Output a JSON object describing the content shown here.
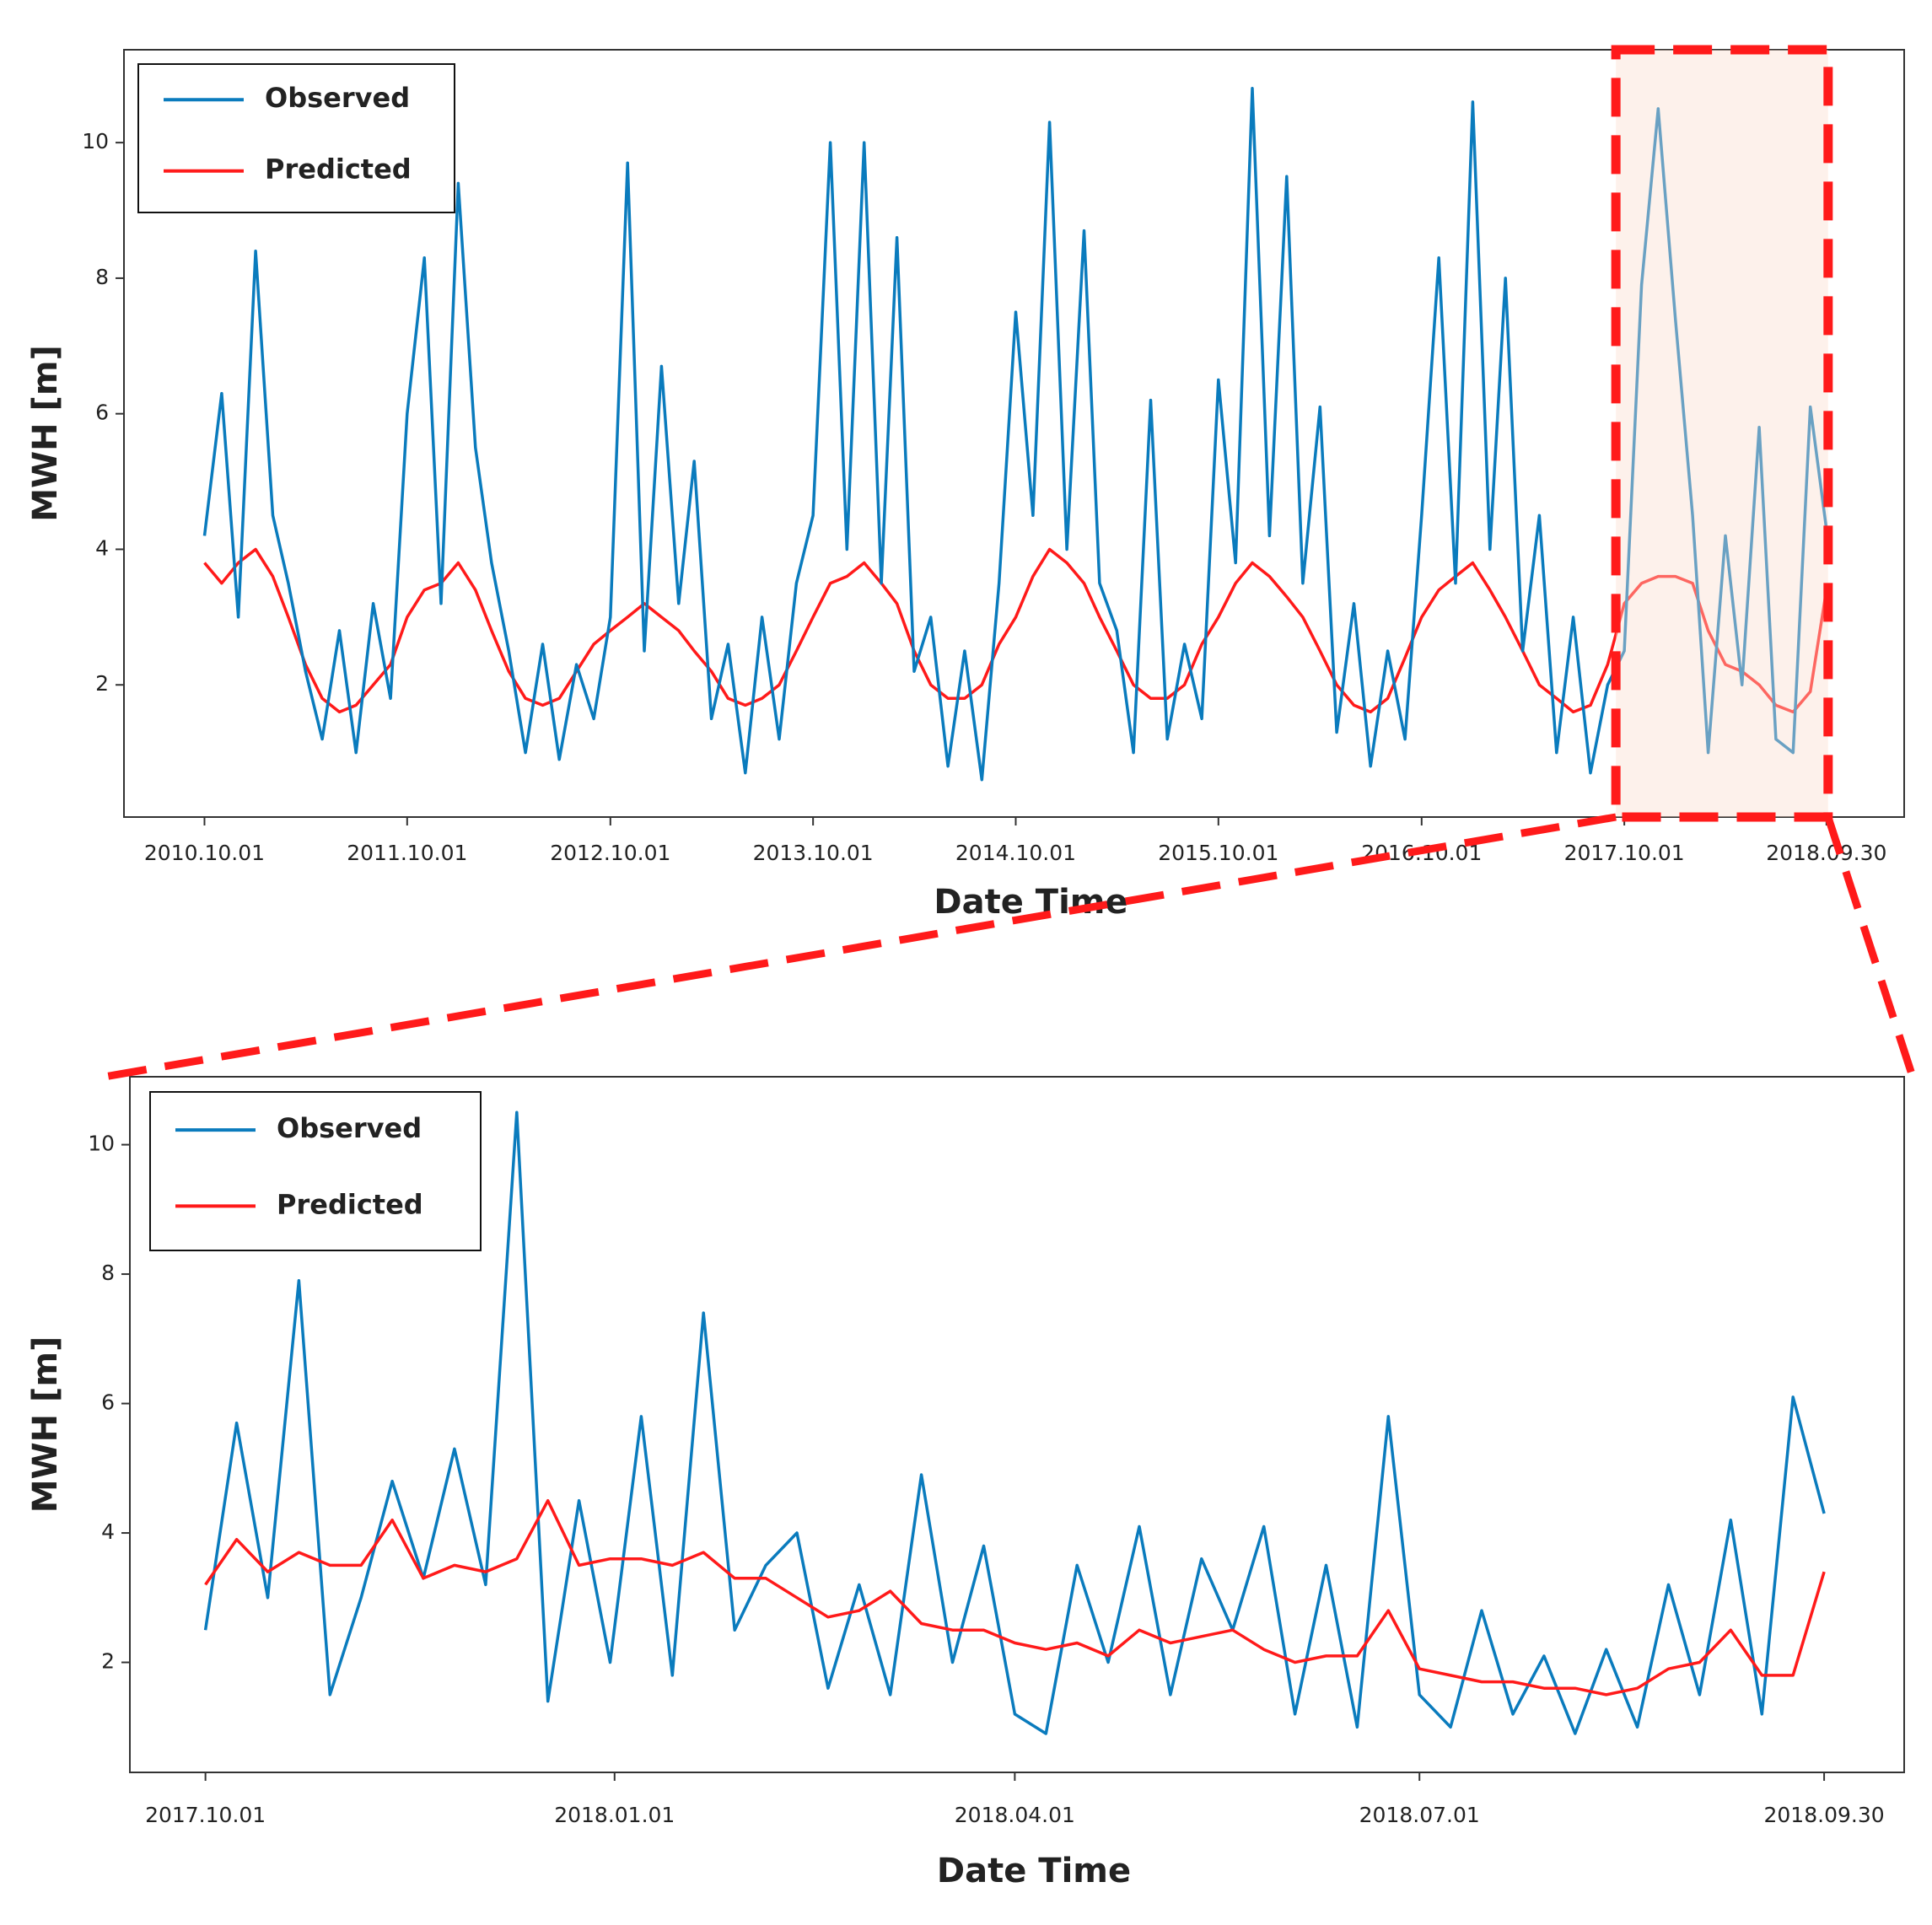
{
  "chart_data": [
    {
      "type": "line",
      "xlabel": "Date Time",
      "ylabel": "MWH [m]",
      "legend": "upper left",
      "xlim": [
        "2010.05.09",
        "2019.02.17"
      ],
      "ylim": [
        0.05,
        11.37
      ],
      "xticks": [
        "2010.10.01",
        "2011.10.01",
        "2012.10.01",
        "2013.10.01",
        "2014.10.01",
        "2015.10.01",
        "2016.10.01",
        "2017.10.01",
        "2018.09.30"
      ],
      "yticks": [
        2,
        4,
        6,
        8,
        10
      ],
      "x": [
        "2010.10.01",
        "2010.11.01",
        "2010.12.01",
        "2011.01.01",
        "2011.02.01",
        "2011.03.01",
        "2011.04.01",
        "2011.05.01",
        "2011.06.01",
        "2011.07.01",
        "2011.08.01",
        "2011.09.01",
        "2011.10.01",
        "2011.11.01",
        "2011.12.01",
        "2012.01.01",
        "2012.02.01",
        "2012.03.01",
        "2012.04.01",
        "2012.05.01",
        "2012.06.01",
        "2012.07.01",
        "2012.08.01",
        "2012.09.01",
        "2012.10.01",
        "2012.11.01",
        "2012.12.01",
        "2013.01.01",
        "2013.02.01",
        "2013.03.01",
        "2013.04.01",
        "2013.05.01",
        "2013.06.01",
        "2013.07.01",
        "2013.08.01",
        "2013.09.01",
        "2013.10.01",
        "2013.11.01",
        "2013.12.01",
        "2014.01.01",
        "2014.02.01",
        "2014.03.01",
        "2014.04.01",
        "2014.05.01",
        "2014.06.01",
        "2014.07.01",
        "2014.08.01",
        "2014.09.01",
        "2014.10.01",
        "2014.11.01",
        "2014.12.01",
        "2015.01.01",
        "2015.02.01",
        "2015.03.01",
        "2015.04.01",
        "2015.05.01",
        "2015.06.01",
        "2015.07.01",
        "2015.08.01",
        "2015.09.01",
        "2015.10.01",
        "2015.11.01",
        "2015.12.01",
        "2016.01.01",
        "2016.02.01",
        "2016.03.01",
        "2016.04.01",
        "2016.05.01",
        "2016.06.01",
        "2016.07.01",
        "2016.08.01",
        "2016.09.01",
        "2016.10.01",
        "2016.11.01",
        "2016.12.01",
        "2017.01.01",
        "2017.02.01",
        "2017.03.01",
        "2017.04.01",
        "2017.05.01",
        "2017.06.01",
        "2017.07.01",
        "2017.08.01",
        "2017.09.01",
        "2017.10.01",
        "2017.11.01",
        "2017.12.01",
        "2018.01.01",
        "2018.02.01",
        "2018.03.01",
        "2018.04.01",
        "2018.05.01",
        "2018.06.01",
        "2018.07.01",
        "2018.08.01",
        "2018.09.01",
        "2018.09.30"
      ],
      "series": [
        {
          "name": "Observed",
          "color": "#0a7bbd",
          "values": [
            4.2,
            6.3,
            3.0,
            8.4,
            4.5,
            3.5,
            2.2,
            1.2,
            2.8,
            1.0,
            3.2,
            1.8,
            6.0,
            8.3,
            3.2,
            9.4,
            5.5,
            3.8,
            2.5,
            1.0,
            2.6,
            0.9,
            2.3,
            1.5,
            3.0,
            9.7,
            2.5,
            6.7,
            3.2,
            5.3,
            1.5,
            2.6,
            0.7,
            3.0,
            1.2,
            3.5,
            4.5,
            10.0,
            4.0,
            10.0,
            3.5,
            8.6,
            2.2,
            3.0,
            0.8,
            2.5,
            0.6,
            3.5,
            7.5,
            4.5,
            10.3,
            4.0,
            8.7,
            3.5,
            2.8,
            1.0,
            6.2,
            1.2,
            2.6,
            1.5,
            6.5,
            3.8,
            10.8,
            4.2,
            9.5,
            3.5,
            6.1,
            1.3,
            3.2,
            0.8,
            2.5,
            1.2,
            4.5,
            8.3,
            3.5,
            10.6,
            4.0,
            8.0,
            2.5,
            4.5,
            1.0,
            3.0,
            0.7,
            2.0,
            2.5,
            7.9,
            10.5,
            7.4,
            4.5,
            1.0,
            4.2,
            2.0,
            5.8,
            1.2,
            1.0,
            6.1,
            4.3
          ]
        },
        {
          "name": "Predicted",
          "color": "#ff1a1a",
          "values": [
            3.8,
            3.5,
            3.8,
            4.0,
            3.6,
            3.0,
            2.3,
            1.8,
            1.6,
            1.7,
            2.0,
            2.3,
            3.0,
            3.4,
            3.5,
            3.8,
            3.4,
            2.8,
            2.2,
            1.8,
            1.7,
            1.8,
            2.2,
            2.6,
            2.8,
            3.0,
            3.2,
            3.0,
            2.8,
            2.5,
            2.2,
            1.8,
            1.7,
            1.8,
            2.0,
            2.5,
            3.0,
            3.5,
            3.6,
            3.8,
            3.5,
            3.2,
            2.5,
            2.0,
            1.8,
            1.8,
            2.0,
            2.6,
            3.0,
            3.6,
            4.0,
            3.8,
            3.5,
            3.0,
            2.5,
            2.0,
            1.8,
            1.8,
            2.0,
            2.6,
            3.0,
            3.5,
            3.8,
            3.6,
            3.3,
            3.0,
            2.5,
            2.0,
            1.7,
            1.6,
            1.8,
            2.4,
            3.0,
            3.4,
            3.6,
            3.8,
            3.4,
            3.0,
            2.5,
            2.0,
            1.8,
            1.6,
            1.7,
            2.3,
            3.2,
            3.5,
            3.6,
            3.6,
            3.5,
            2.8,
            2.3,
            2.2,
            2.0,
            1.7,
            1.6,
            1.9,
            3.4
          ]
        }
      ]
    },
    {
      "type": "line",
      "xlabel": "Date Time",
      "ylabel": "MWH [m]",
      "legend": "upper left",
      "xlim": [
        "2017.09.14",
        "2018.10.18"
      ],
      "ylim": [
        0.3,
        11.05
      ],
      "xticks": [
        "2017.10.01",
        "2018.01.01",
        "2018.04.01",
        "2018.07.01",
        "2018.09.30"
      ],
      "yticks": [
        2,
        4,
        6,
        8,
        10
      ],
      "x": [
        "2017.10.01",
        "2017.10.08",
        "2017.10.15",
        "2017.10.22",
        "2017.10.29",
        "2017.11.05",
        "2017.11.12",
        "2017.11.19",
        "2017.11.26",
        "2017.12.03",
        "2017.12.10",
        "2017.12.17",
        "2017.12.24",
        "2017.12.31",
        "2018.01.07",
        "2018.01.14",
        "2018.01.21",
        "2018.01.28",
        "2018.02.04",
        "2018.02.11",
        "2018.02.18",
        "2018.02.25",
        "2018.03.04",
        "2018.03.11",
        "2018.03.18",
        "2018.03.25",
        "2018.04.01",
        "2018.04.08",
        "2018.04.15",
        "2018.04.22",
        "2018.04.29",
        "2018.05.06",
        "2018.05.13",
        "2018.05.20",
        "2018.05.27",
        "2018.06.03",
        "2018.06.10",
        "2018.06.17",
        "2018.06.24",
        "2018.07.01",
        "2018.07.08",
        "2018.07.15",
        "2018.07.22",
        "2018.07.29",
        "2018.08.05",
        "2018.08.12",
        "2018.08.19",
        "2018.08.26",
        "2018.09.02",
        "2018.09.09",
        "2018.09.16",
        "2018.09.23",
        "2018.09.30"
      ],
      "series": [
        {
          "name": "Observed",
          "color": "#0a7bbd",
          "values": [
            2.5,
            5.7,
            3.0,
            7.9,
            1.5,
            3.0,
            4.8,
            3.3,
            5.3,
            3.2,
            10.5,
            1.4,
            4.5,
            2.0,
            5.8,
            1.8,
            7.4,
            2.5,
            3.5,
            4.0,
            1.6,
            3.2,
            1.5,
            4.9,
            2.0,
            3.8,
            1.2,
            0.9,
            3.5,
            2.0,
            4.1,
            1.5,
            3.6,
            2.5,
            4.1,
            1.2,
            3.5,
            1.0,
            5.8,
            1.5,
            1.0,
            2.8,
            1.2,
            2.1,
            0.9,
            2.2,
            1.0,
            3.2,
            1.5,
            4.2,
            1.2,
            6.1,
            4.3
          ]
        },
        {
          "name": "Predicted",
          "color": "#ff1a1a",
          "values": [
            3.2,
            3.9,
            3.4,
            3.7,
            3.5,
            3.5,
            4.2,
            3.3,
            3.5,
            3.4,
            3.6,
            4.5,
            3.5,
            3.6,
            3.6,
            3.5,
            3.7,
            3.3,
            3.3,
            3.0,
            2.7,
            2.8,
            3.1,
            2.6,
            2.5,
            2.5,
            2.3,
            2.2,
            2.3,
            2.1,
            2.5,
            2.3,
            2.4,
            2.5,
            2.2,
            2.0,
            2.1,
            2.1,
            2.8,
            1.9,
            1.8,
            1.7,
            1.7,
            1.6,
            1.6,
            1.5,
            1.6,
            1.9,
            2.0,
            2.5,
            1.8,
            1.8,
            3.4
          ]
        }
      ]
    }
  ]
}
